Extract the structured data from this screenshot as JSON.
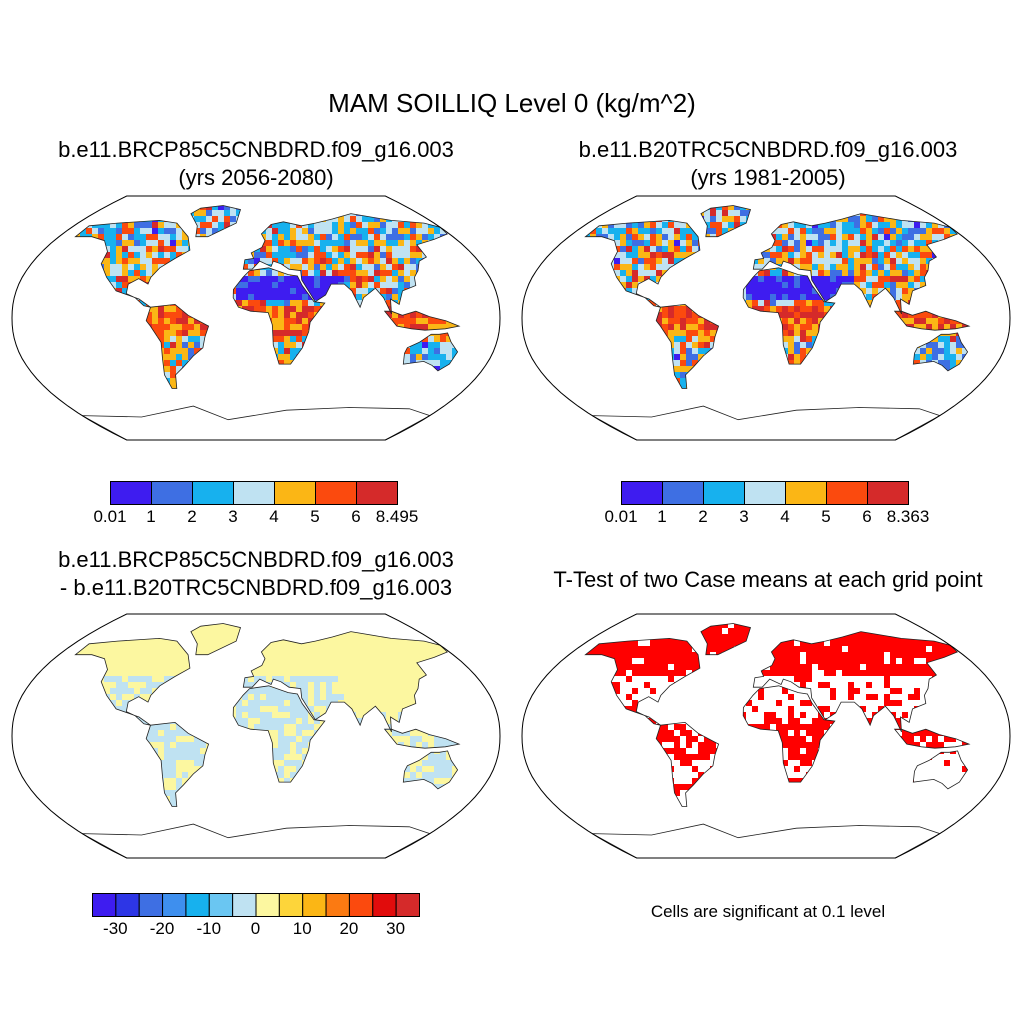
{
  "main_title": "MAM SOILLIQ Level 0 (kg/m^2)",
  "panels": [
    {
      "id": "case1",
      "title_line1": "b.e11.BRCP85C5CNBDRD.f09_g16.003",
      "title_line2": "(yrs 2056-2080)",
      "colorbar": {
        "colors": [
          "#3e1cf0",
          "#3e6fe3",
          "#17b1ee",
          "#bfe2f2",
          "#fbb615",
          "#fb4a0e",
          "#d52a2a"
        ],
        "labels": [
          "0.01",
          "1",
          "2",
          "3",
          "4",
          "5",
          "6",
          "8.495"
        ]
      }
    },
    {
      "id": "case2",
      "title_line1": "b.e11.B20TRC5CNBDRD.f09_g16.003",
      "title_line2": "(yrs 1981-2005)",
      "colorbar": {
        "colors": [
          "#3e1cf0",
          "#3e6fe3",
          "#17b1ee",
          "#bfe2f2",
          "#fbb615",
          "#fb4a0e",
          "#d52a2a"
        ],
        "labels": [
          "0.01",
          "1",
          "2",
          "3",
          "4",
          "5",
          "6",
          "8.363"
        ]
      }
    },
    {
      "id": "difference",
      "title_line1": "b.e11.BRCP85C5CNBDRD.f09_g16.003",
      "title_line2": "- b.e11.B20TRC5CNBDRD.f09_g16.003",
      "colorbar": {
        "colors": [
          "#3e1cf0",
          "#2d36e6",
          "#3e6fe3",
          "#3e8fee",
          "#17b1ee",
          "#6ac6f2",
          "#bfe2f2",
          "#fcf7a0",
          "#fdd53a",
          "#fbb615",
          "#fb7a12",
          "#fb4a0e",
          "#e10c0c",
          "#d52a2a"
        ],
        "labels": [
          "-30",
          "-20",
          "-10",
          "0",
          "10",
          "20",
          "30"
        ]
      }
    },
    {
      "id": "ttest",
      "title_line1": "T-Test of two Case means at each grid point",
      "note": "Cells are significant at 0.1 level"
    }
  ]
}
